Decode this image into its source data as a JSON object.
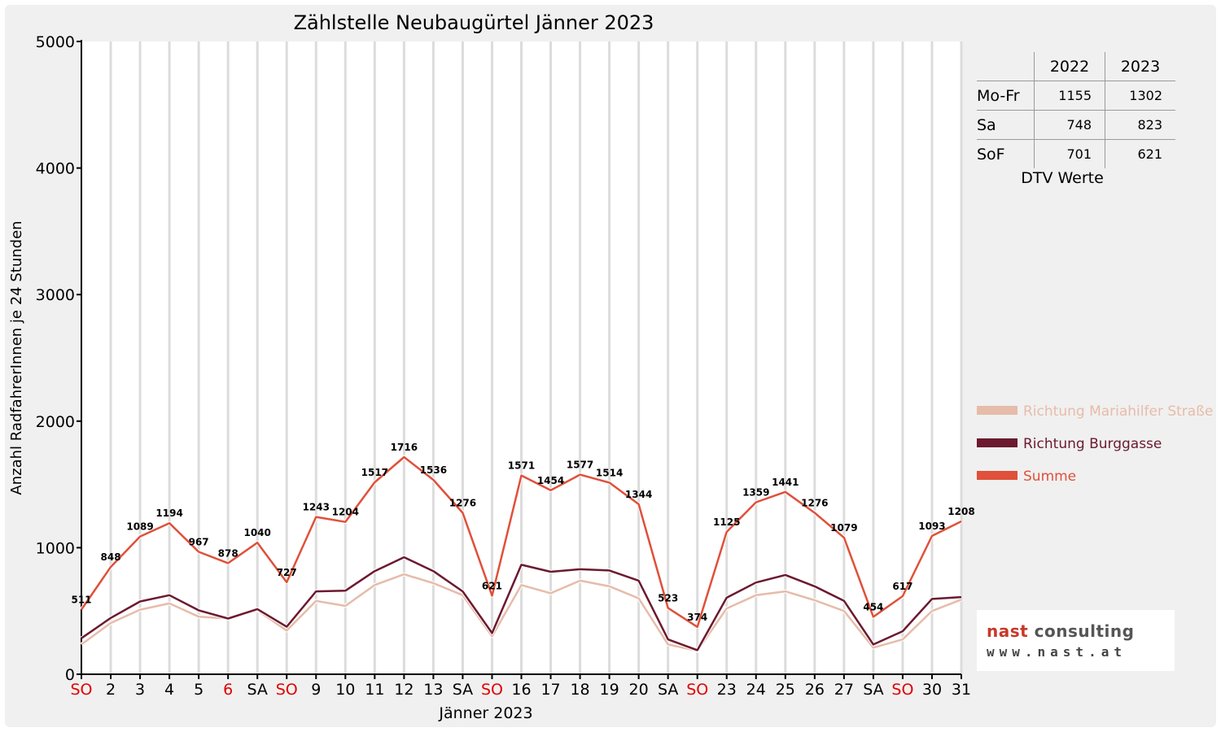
{
  "chart_data": {
    "type": "line",
    "title": "Zählstelle Neubaugürtel Jänner 2023",
    "xlabel": "Jänner 2023",
    "ylabel": "Anzahl RadfahrerInnen je 24 Stunden",
    "ylim": [
      0,
      5000
    ],
    "yticks": [
      "0",
      "1000",
      "2000",
      "3000",
      "4000",
      "5000"
    ],
    "categories": [
      "SO",
      "2",
      "3",
      "4",
      "5",
      "6",
      "SA",
      "SO",
      "9",
      "10",
      "11",
      "12",
      "13",
      "SA",
      "SO",
      "16",
      "17",
      "18",
      "19",
      "20",
      "SA",
      "SO",
      "23",
      "24",
      "25",
      "26",
      "27",
      "SA",
      "SO",
      "30",
      "31"
    ],
    "red_category_indices": [
      0,
      5,
      7,
      14,
      21,
      28
    ],
    "grid": "vertical",
    "legend_position": "right",
    "series": [
      {
        "name": "Richtung Mariahilfer Straße",
        "color": "#e6bcaa",
        "values": [
          235,
          405,
          510,
          560,
          455,
          440,
          505,
          345,
          580,
          540,
          705,
          790,
          720,
          625,
          300,
          705,
          640,
          740,
          695,
          600,
          235,
          185,
          520,
          625,
          655,
          585,
          500,
          210,
          275,
          500,
          590
        ]
      },
      {
        "name": "Richtung Burggasse",
        "color": "#6b1a30",
        "values": [
          285,
          445,
          575,
          625,
          505,
          440,
          515,
          375,
          655,
          660,
          815,
          925,
          815,
          655,
          325,
          865,
          810,
          830,
          820,
          740,
          275,
          190,
          605,
          725,
          785,
          695,
          580,
          235,
          340,
          595,
          610
        ]
      },
      {
        "name": "Summe",
        "color": "#e0503a",
        "values": [
          511,
          848,
          1089,
          1194,
          967,
          878,
          1040,
          727,
          1243,
          1204,
          1517,
          1716,
          1536,
          1276,
          621,
          1571,
          1454,
          1577,
          1514,
          1344,
          523,
          374,
          1125,
          1359,
          1441,
          1276,
          1079,
          454,
          617,
          1093,
          1208
        ]
      }
    ]
  },
  "dtv_table": {
    "headers": [
      "2022",
      "2023"
    ],
    "rows": [
      {
        "label": "Mo-Fr",
        "v2022": "1155",
        "v2023": "1302"
      },
      {
        "label": "Sa",
        "v2022": "748",
        "v2023": "823"
      },
      {
        "label": "SoF",
        "v2022": "701",
        "v2023": "621"
      }
    ],
    "caption": "DTV Werte"
  },
  "logo": {
    "name_part1": "nast",
    "name_part2": " consulting",
    "url": "www.nast.at"
  }
}
